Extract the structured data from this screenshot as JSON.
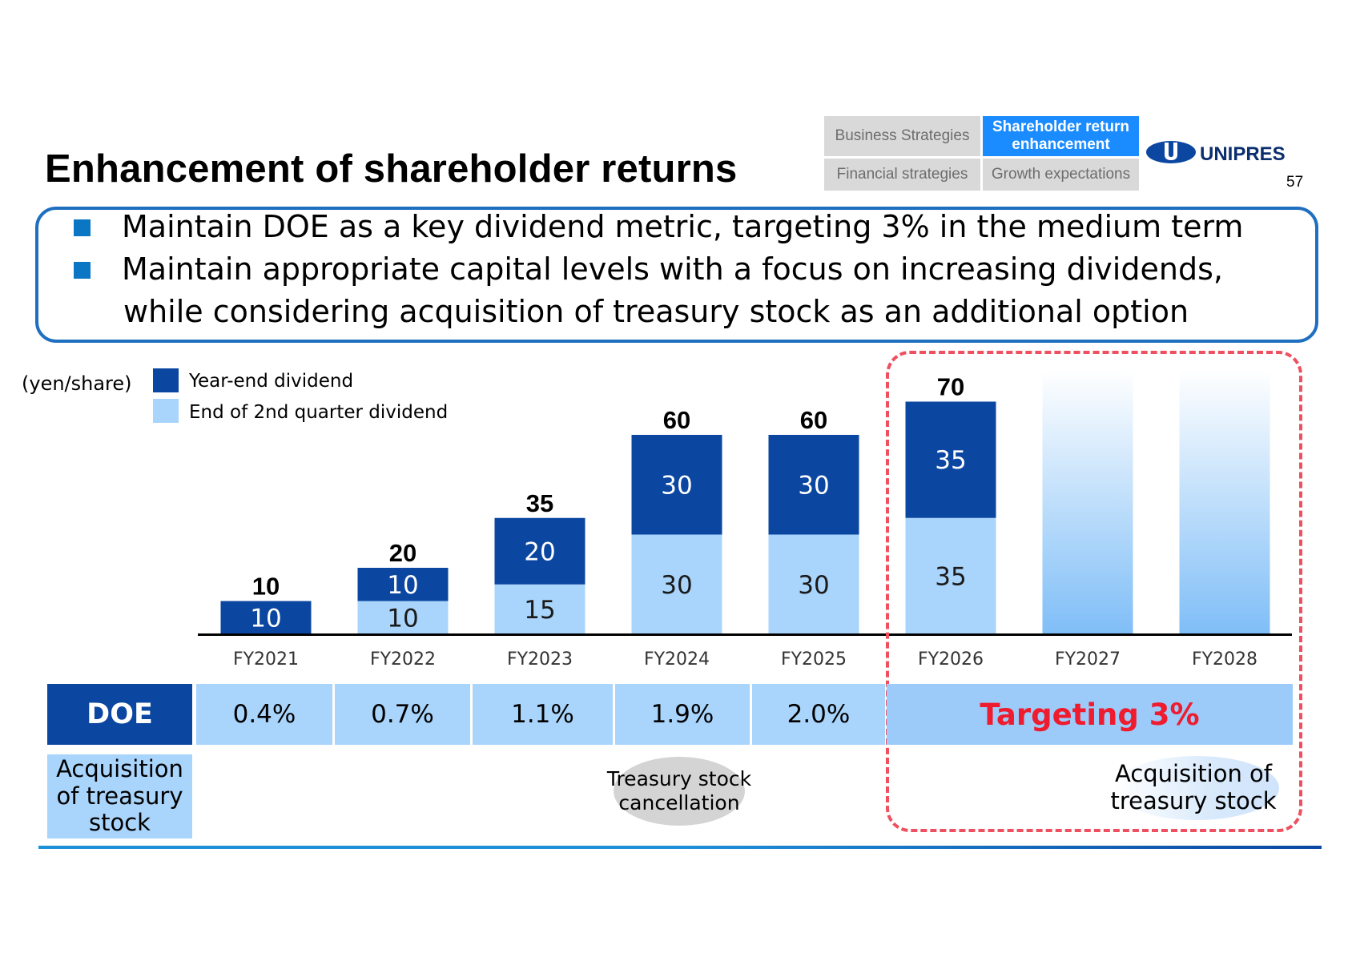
{
  "header": {
    "title": "Enhancement of shareholder returns",
    "nav": {
      "business_strategies": "Business Strategies",
      "shareholder_return": "Shareholder return enhancement",
      "financial_strategies": "Financial strategies",
      "growth_expectations": "Growth expectations"
    },
    "logo_text": "UNIPRES",
    "page_number": "57"
  },
  "callout": {
    "bullets": [
      "Maintain DOE as a key dividend metric, targeting 3% in the medium term",
      "Maintain appropriate capital levels with a focus on increasing dividends,",
      "while considering acquisition of treasury stock as an additional option"
    ]
  },
  "chart_data": {
    "type": "bar",
    "stacked": true,
    "unit_label": "(yen/share)",
    "categories": [
      "FY2021",
      "FY2022",
      "FY2023",
      "FY2024",
      "FY2025",
      "FY2026",
      "FY2027",
      "FY2028"
    ],
    "series": [
      {
        "name": "End of 2nd quarter dividend",
        "values": [
          0,
          10,
          15,
          30,
          30,
          35,
          null,
          null
        ],
        "color": "#a9d4fb"
      },
      {
        "name": "Year-end dividend",
        "values": [
          10,
          10,
          20,
          30,
          30,
          35,
          null,
          null
        ],
        "color": "#0b47a1"
      }
    ],
    "totals": [
      10,
      20,
      35,
      60,
      60,
      70,
      null,
      null
    ],
    "ylim": [
      0,
      80
    ],
    "target_bars": [
      "FY2027",
      "FY2028"
    ],
    "target_color": "#7fbef7",
    "highlight": [
      "FY2026",
      "FY2027",
      "FY2028"
    ]
  },
  "doe": {
    "label": "DOE",
    "values": [
      "0.4%",
      "0.7%",
      "1.1%",
      "1.9%",
      "2.0%"
    ],
    "target": "Targeting 3%"
  },
  "treasury": {
    "label": "Acquisition of treasury stock",
    "label_lines": [
      "Acquisition",
      "of treasury",
      "stock"
    ],
    "fy2024_event": [
      "Treasury stock",
      "cancellation"
    ],
    "target_event": [
      "Acquisition of",
      "treasury stock"
    ]
  },
  "colors": {
    "dark_blue": "#0b47a1",
    "light_blue": "#a9d4fb",
    "accent_blue": "#1a8cff",
    "target_red": "#ee1c2e",
    "dash_red": "#ee5060"
  }
}
